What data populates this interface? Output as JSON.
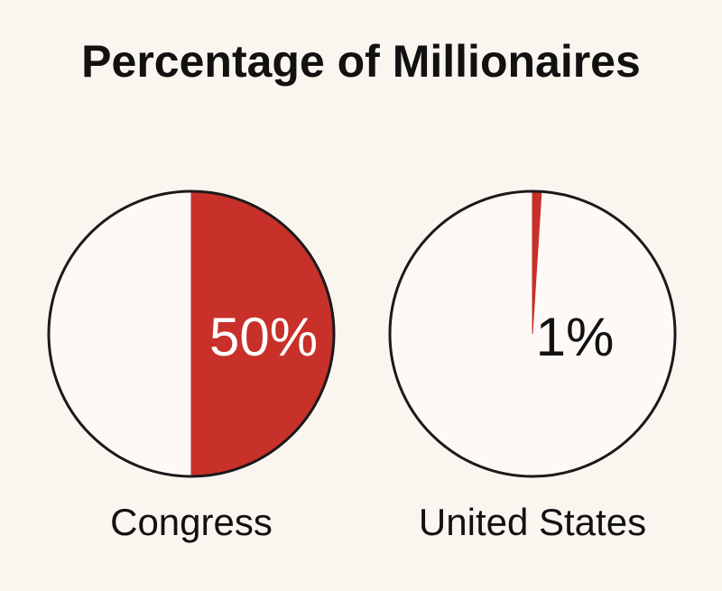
{
  "title": "Percentage of Millionaires",
  "chart_data": [
    {
      "type": "pie",
      "label": "Congress",
      "values": [
        50
      ],
      "value_labels": [
        "50%"
      ],
      "color": "#c8302a"
    },
    {
      "type": "pie",
      "label": "United States",
      "values": [
        1
      ],
      "value_labels": [
        "1%"
      ],
      "color": "#c8302a"
    }
  ]
}
